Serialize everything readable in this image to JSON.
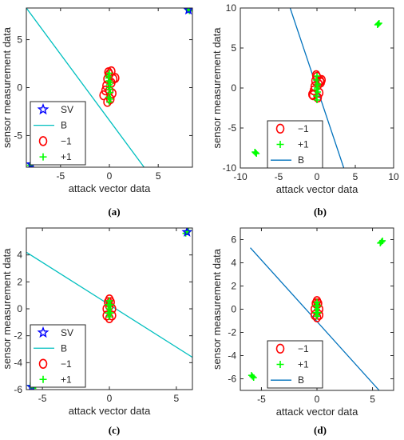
{
  "chart_data": [
    {
      "type": "scatter",
      "panel": "(a)",
      "xlabel": "attack vector data",
      "ylabel": "sensor measurement data",
      "xlim": [
        -8.5,
        8.5
      ],
      "ylim": [
        -8.3,
        8.3
      ],
      "xticks": [
        -5,
        0,
        5
      ],
      "xtick_labels": [
        "-5",
        "0",
        "5"
      ],
      "yticks": [
        -5,
        0,
        5
      ],
      "yticks_labels": [
        "-5",
        "0",
        "5"
      ],
      "legend_position": "bottom-left",
      "legend": [
        {
          "label": "SV",
          "marker": "star",
          "color": "#0000ff"
        },
        {
          "label": "B",
          "marker": "line",
          "color": "#00bfbf"
        },
        {
          "label": "−1",
          "marker": "circle",
          "color": "#ff0000"
        },
        {
          "label": "+1",
          "marker": "plus",
          "color": "#00ff00"
        }
      ],
      "series": [
        {
          "name": "−1",
          "color": "#ff0000",
          "marker": "circle",
          "x": [
            -0.6,
            -0.4,
            -0.2,
            0.0,
            0.2,
            0.4,
            0.6,
            0.3,
            -0.3,
            0.1,
            -0.1,
            0.0,
            0.2,
            -0.2
          ],
          "y": [
            -0.8,
            -0.3,
            0.9,
            1.4,
            0.5,
            0.9,
            1.0,
            -0.6,
            0.2,
            -1.2,
            1.6,
            -0.3,
            1.7,
            -1.5
          ]
        },
        {
          "name": "+1",
          "color": "#00ff00",
          "marker": "plus",
          "x": [
            0.0,
            -0.1,
            0.1,
            0.0,
            0.1,
            -0.1,
            0.0,
            0.1,
            -0.1,
            0.0,
            0.05,
            -0.05,
            8.1,
            8.2,
            8.0,
            -8.0,
            -8.1,
            -7.9
          ],
          "y": [
            -1.5,
            -1.0,
            -0.5,
            0.0,
            0.5,
            1.0,
            1.5,
            -1.2,
            1.2,
            0.3,
            -0.2,
            0.7,
            8.1,
            8.0,
            8.2,
            -7.9,
            -8.1,
            -8.0
          ]
        },
        {
          "name": "SV",
          "color": "#0000ff",
          "marker": "star",
          "x": [
            8.1,
            -8.0
          ],
          "y": [
            8.1,
            -8.0
          ]
        },
        {
          "name": "B",
          "color": "#00bfbf",
          "marker": "line",
          "x": [
            -8.5,
            3.55
          ],
          "y": [
            8.3,
            -8.3
          ]
        }
      ]
    },
    {
      "type": "scatter",
      "panel": "(b)",
      "xlabel": "attack vector data",
      "ylabel": "sensor measurement data",
      "xlim": [
        -10,
        10
      ],
      "ylim": [
        -10,
        10
      ],
      "xticks": [
        -10,
        -5,
        0,
        5,
        10
      ],
      "xtick_labels": [
        "-10",
        "-5",
        "0",
        "5",
        "10"
      ],
      "yticks": [
        -10,
        -5,
        0,
        5,
        10
      ],
      "yticks_labels": [
        "-10",
        "-5",
        "0",
        "5",
        "10"
      ],
      "legend_position": "bottom-left",
      "legend": [
        {
          "label": "−1",
          "marker": "circle",
          "color": "#ff0000"
        },
        {
          "label": "+1",
          "marker": "plus",
          "color": "#00ff00"
        },
        {
          "label": "B",
          "marker": "line",
          "color": "#0072bd"
        }
      ],
      "series": [
        {
          "name": "−1",
          "color": "#ff0000",
          "marker": "circle",
          "x": [
            -0.6,
            -0.4,
            -0.2,
            0.0,
            0.2,
            0.4,
            0.6,
            0.3,
            -0.3,
            0.1,
            -0.1,
            0.5,
            -0.5
          ],
          "y": [
            -0.8,
            -0.3,
            0.9,
            1.4,
            0.5,
            0.9,
            1.0,
            -0.6,
            0.2,
            -1.2,
            1.6,
            0.7,
            -0.9
          ]
        },
        {
          "name": "+1",
          "color": "#00ff00",
          "marker": "plus",
          "x": [
            0.0,
            -0.1,
            0.1,
            0.0,
            0.1,
            -0.1,
            0.0,
            0.05,
            -0.05,
            8.0,
            8.1,
            7.9,
            -8.0,
            -8.1,
            -7.9
          ],
          "y": [
            -1.5,
            -1.0,
            -0.5,
            0.0,
            0.5,
            1.0,
            1.5,
            0.3,
            -0.2,
            8.0,
            8.1,
            7.9,
            -8.1,
            -8.0,
            -8.2
          ]
        },
        {
          "name": "B",
          "color": "#0072bd",
          "marker": "line",
          "x": [
            -3.5,
            3.5
          ],
          "y": [
            10,
            -10
          ]
        }
      ]
    },
    {
      "type": "scatter",
      "panel": "(c)",
      "xlabel": "attack vector data",
      "ylabel": "sensor measurement data",
      "xlim": [
        -6.2,
        6.2
      ],
      "ylim": [
        -6,
        6
      ],
      "xticks": [
        -5,
        0,
        5
      ],
      "xtick_labels": [
        "-5",
        "0",
        "5"
      ],
      "yticks": [
        -6,
        -4,
        -2,
        0,
        2,
        4
      ],
      "yticks_labels": [
        "-6",
        "-4",
        "-2",
        "0",
        "2",
        "4"
      ],
      "legend_position": "bottom-left",
      "legend": [
        {
          "label": "SV",
          "marker": "star",
          "color": "#0000ff"
        },
        {
          "label": "B",
          "marker": "line",
          "color": "#00bfbf"
        },
        {
          "label": "−1",
          "marker": "circle",
          "color": "#ff0000"
        },
        {
          "label": "+1",
          "marker": "plus",
          "color": "#00ff00"
        }
      ],
      "series": [
        {
          "name": "−1",
          "color": "#ff0000",
          "marker": "circle",
          "x": [
            -0.2,
            0.2,
            0.0,
            -0.1,
            0.1,
            0.0,
            -0.2,
            0.2,
            0.0
          ],
          "y": [
            -0.5,
            -0.5,
            -0.7,
            0.5,
            0.5,
            0.7,
            0.0,
            0.0,
            0.2
          ]
        },
        {
          "name": "+1",
          "color": "#00ff00",
          "marker": "plus",
          "x": [
            0.0,
            -0.1,
            0.1,
            0.0,
            -0.1,
            0.1,
            0.0,
            5.8,
            5.9,
            5.7,
            -5.8,
            -5.9,
            -5.7
          ],
          "y": [
            -0.6,
            -0.3,
            -0.3,
            0.0,
            0.3,
            0.3,
            0.6,
            5.7,
            5.8,
            5.6,
            -5.8,
            -5.7,
            -5.9
          ]
        },
        {
          "name": "SV",
          "color": "#0000ff",
          "marker": "star",
          "x": [
            5.8,
            -5.8
          ],
          "y": [
            5.7,
            -5.8
          ]
        },
        {
          "name": "B",
          "color": "#00bfbf",
          "marker": "line",
          "x": [
            -6.2,
            6.2
          ],
          "y": [
            4.2,
            -3.6
          ]
        }
      ]
    },
    {
      "type": "scatter",
      "panel": "(d)",
      "xlabel": "attack vector data",
      "ylabel": "sensor measurement data",
      "xlim": [
        -6.9,
        6.9
      ],
      "ylim": [
        -7,
        7
      ],
      "xticks": [
        -5,
        0,
        5
      ],
      "xtick_labels": [
        "-5",
        "0",
        "5"
      ],
      "yticks": [
        -6,
        -4,
        -2,
        0,
        2,
        4,
        6
      ],
      "yticks_labels": [
        "-6",
        "-4",
        "-2",
        "0",
        "2",
        "4",
        "6"
      ],
      "legend_position": "bottom-left",
      "legend": [
        {
          "label": "−1",
          "marker": "circle",
          "color": "#ff0000"
        },
        {
          "label": "+1",
          "marker": "plus",
          "color": "#00ff00"
        },
        {
          "label": "B",
          "marker": "line",
          "color": "#0072bd"
        }
      ],
      "series": [
        {
          "name": "−1",
          "color": "#ff0000",
          "marker": "circle",
          "x": [
            -0.2,
            0.2,
            0.0,
            -0.1,
            0.1,
            0.0,
            -0.2,
            0.2
          ],
          "y": [
            -0.5,
            -0.5,
            -0.7,
            0.5,
            0.5,
            0.7,
            0.0,
            0.0
          ]
        },
        {
          "name": "+1",
          "color": "#00ff00",
          "marker": "plus",
          "x": [
            0.0,
            -0.1,
            0.1,
            0.0,
            -0.1,
            0.1,
            0.0,
            5.8,
            5.9,
            5.7,
            -5.8,
            -5.9,
            -5.7
          ],
          "y": [
            -0.6,
            -0.3,
            -0.3,
            0.0,
            0.3,
            0.3,
            0.6,
            5.8,
            5.9,
            5.7,
            -5.8,
            -5.7,
            -5.9
          ]
        },
        {
          "name": "B",
          "color": "#0072bd",
          "marker": "line",
          "x": [
            -6.0,
            5.6
          ],
          "y": [
            5.3,
            -7.0
          ]
        }
      ]
    }
  ]
}
